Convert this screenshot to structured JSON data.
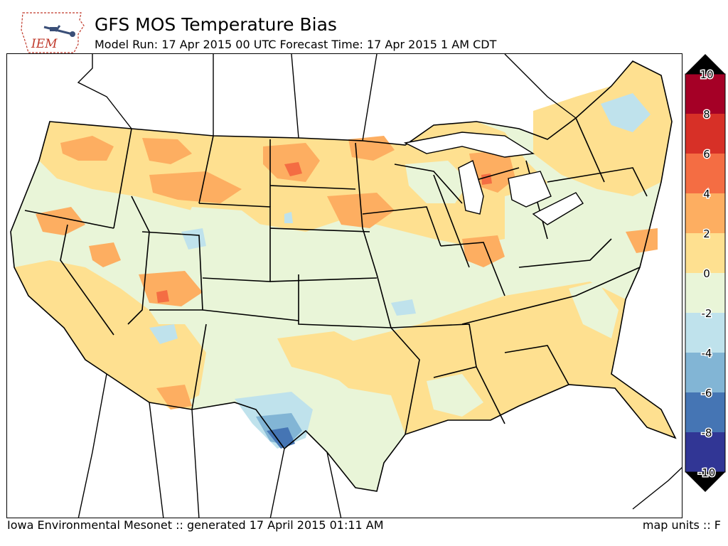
{
  "logo": {
    "text": "IEM"
  },
  "header": {
    "title": "GFS MOS Temperature Bias",
    "subtitle": "Model Run: 17 Apr 2015 00 UTC Forecast Time: 17 Apr 2015 1 AM CDT"
  },
  "colorbar": {
    "levels": [
      {
        "label": "10",
        "color": "#a50026"
      },
      {
        "label": "8",
        "color": "#d73027"
      },
      {
        "label": "6",
        "color": "#f46d43"
      },
      {
        "label": "4",
        "color": "#fdae61"
      },
      {
        "label": "2",
        "color": "#fee090"
      },
      {
        "label": "0",
        "color": "#e9f5d8"
      },
      {
        "label": "-2",
        "color": "#bfe2ec"
      },
      {
        "label": "-4",
        "color": "#82b5d5"
      },
      {
        "label": "-6",
        "color": "#4575b4"
      },
      {
        "label": "-8",
        "color": "#313695"
      },
      {
        "label": "-10",
        "color": ""
      }
    ]
  },
  "footer": {
    "left": "Iowa Environmental Mesonet :: generated 17 April 2015 01:11 AM",
    "right": "map units :: F"
  }
}
